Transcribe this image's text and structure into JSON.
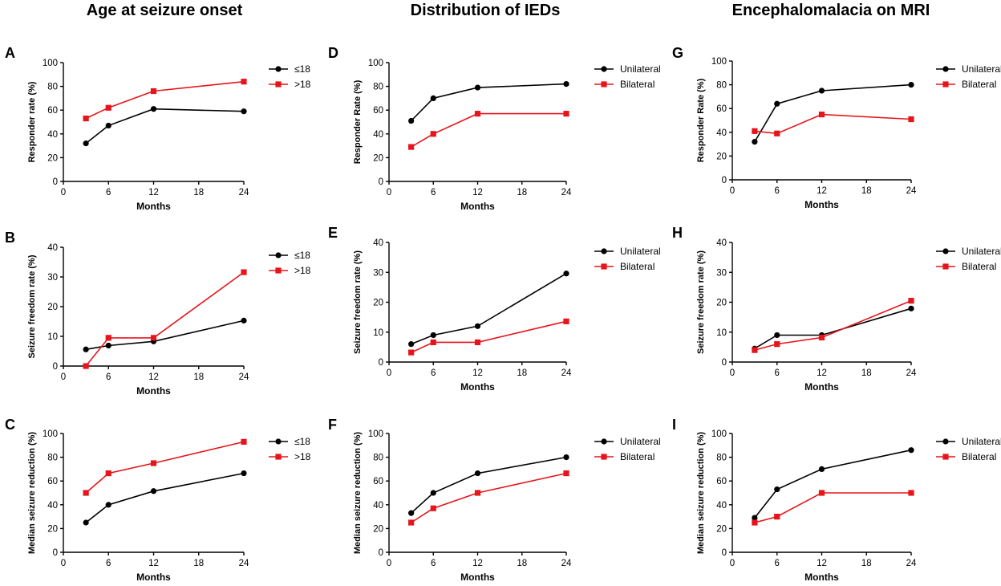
{
  "column_titles": [
    "Age at seizure onset",
    "Distribution of IEDs",
    "Encephalomalacia on MRI"
  ],
  "chart_data": [
    {
      "type": "line",
      "panel": "A",
      "xlabel": "Months",
      "ylabel": "Responder rate (%)",
      "xlim": [
        0,
        24
      ],
      "xticks": [
        0,
        6,
        12,
        18,
        24
      ],
      "ylim": [
        0,
        100
      ],
      "yticks": [
        0,
        20,
        40,
        60,
        80,
        100
      ],
      "x": [
        3,
        6,
        12,
        24
      ],
      "series": [
        {
          "name": "≤18",
          "color": "#000000",
          "marker": "circle",
          "values": [
            32,
            47,
            61,
            59
          ]
        },
        {
          "name": ">18",
          "color": "#e8141b",
          "marker": "square",
          "values": [
            53,
            62,
            76,
            84
          ]
        }
      ]
    },
    {
      "type": "line",
      "panel": "B",
      "xlabel": "Months",
      "ylabel": "Seizure freedom rate (%)",
      "xlim": [
        0,
        24
      ],
      "xticks": [
        0,
        6,
        12,
        18,
        24
      ],
      "ylim": [
        0,
        40
      ],
      "yticks": [
        0,
        10,
        20,
        30,
        40
      ],
      "x": [
        3,
        6,
        12,
        24
      ],
      "series": [
        {
          "name": "≤18",
          "color": "#000000",
          "marker": "circle",
          "values": [
            5.6,
            6.9,
            8.3,
            15.3
          ]
        },
        {
          "name": ">18",
          "color": "#e8141b",
          "marker": "square",
          "values": [
            0,
            9.5,
            9.5,
            31.6
          ]
        }
      ]
    },
    {
      "type": "line",
      "panel": "C",
      "xlabel": "Months",
      "ylabel": "Median seizure reduction (%)",
      "xlim": [
        0,
        24
      ],
      "xticks": [
        0,
        6,
        12,
        18,
        24
      ],
      "ylim": [
        0,
        100
      ],
      "yticks": [
        0,
        20,
        40,
        60,
        80,
        100
      ],
      "x": [
        3,
        6,
        12,
        24
      ],
      "series": [
        {
          "name": "≤18",
          "color": "#000000",
          "marker": "circle",
          "values": [
            25,
            40,
            51.5,
            66.5
          ]
        },
        {
          "name": ">18",
          "color": "#e8141b",
          "marker": "square",
          "values": [
            50,
            66.5,
            75,
            93
          ]
        }
      ]
    },
    {
      "type": "line",
      "panel": "D",
      "xlabel": "Months",
      "ylabel": "Responder Rate (%)",
      "xlim": [
        0,
        24
      ],
      "xticks": [
        0,
        6,
        12,
        18,
        24
      ],
      "ylim": [
        0,
        100
      ],
      "yticks": [
        0,
        20,
        40,
        60,
        80,
        100
      ],
      "x": [
        3,
        6,
        12,
        24
      ],
      "series": [
        {
          "name": "Unilateral",
          "color": "#000000",
          "marker": "circle",
          "values": [
            51,
            70,
            79,
            82
          ]
        },
        {
          "name": "Bilateral",
          "color": "#e8141b",
          "marker": "square",
          "values": [
            29,
            40,
            57,
            57
          ]
        }
      ]
    },
    {
      "type": "line",
      "panel": "E",
      "xlabel": "Months",
      "ylabel": "Seizure freedom rate (%)",
      "xlim": [
        0,
        24
      ],
      "xticks": [
        0,
        6,
        12,
        18,
        24
      ],
      "ylim": [
        0,
        40
      ],
      "yticks": [
        0,
        10,
        20,
        30,
        40
      ],
      "x": [
        3,
        6,
        12,
        24
      ],
      "series": [
        {
          "name": "Unilateral",
          "color": "#000000",
          "marker": "circle",
          "values": [
            6,
            9,
            12,
            29.6
          ]
        },
        {
          "name": "Bilateral",
          "color": "#e8141b",
          "marker": "square",
          "values": [
            3.2,
            6.6,
            6.6,
            13.6
          ]
        }
      ]
    },
    {
      "type": "line",
      "panel": "F",
      "xlabel": "Months",
      "ylabel": "Median seizure reduction (%)",
      "xlim": [
        0,
        24
      ],
      "xticks": [
        0,
        6,
        12,
        18,
        24
      ],
      "ylim": [
        0,
        100
      ],
      "yticks": [
        0,
        20,
        40,
        60,
        80,
        100
      ],
      "x": [
        3,
        6,
        12,
        24
      ],
      "series": [
        {
          "name": "Unilateral",
          "color": "#000000",
          "marker": "circle",
          "values": [
            33,
            50,
            66.5,
            80
          ]
        },
        {
          "name": "Bilateral",
          "color": "#e8141b",
          "marker": "square",
          "values": [
            25,
            37,
            50,
            66.5
          ]
        }
      ]
    },
    {
      "type": "line",
      "panel": "G",
      "xlabel": "Months",
      "ylabel": "Responder Rate (%)",
      "xlim": [
        0,
        24
      ],
      "xticks": [
        0,
        6,
        12,
        18,
        24
      ],
      "ylim": [
        0,
        100
      ],
      "yticks": [
        0,
        20,
        40,
        60,
        80,
        100
      ],
      "x": [
        3,
        6,
        12,
        24
      ],
      "series": [
        {
          "name": "Unilateral",
          "color": "#000000",
          "marker": "circle",
          "values": [
            32,
            64,
            75,
            80
          ]
        },
        {
          "name": "Bilateral",
          "color": "#e8141b",
          "marker": "square",
          "values": [
            41,
            39,
            55,
            51
          ]
        }
      ]
    },
    {
      "type": "line",
      "panel": "H",
      "xlabel": "Months",
      "ylabel": "Seizure freedom rate (%)",
      "xlim": [
        0,
        24
      ],
      "xticks": [
        0,
        6,
        12,
        18,
        24
      ],
      "ylim": [
        0,
        40
      ],
      "yticks": [
        0,
        10,
        20,
        30,
        40
      ],
      "x": [
        3,
        6,
        12,
        24
      ],
      "series": [
        {
          "name": "Unilateral",
          "color": "#000000",
          "marker": "circle",
          "values": [
            4.5,
            9,
            9,
            17.9
          ]
        },
        {
          "name": "Bilateral",
          "color": "#e8141b",
          "marker": "square",
          "values": [
            4,
            6,
            8.2,
            20.5
          ]
        }
      ]
    },
    {
      "type": "line",
      "panel": "I",
      "xlabel": "Months",
      "ylabel": "Median seizure reduction (%)",
      "xlim": [
        0,
        24
      ],
      "xticks": [
        0,
        6,
        12,
        18,
        24
      ],
      "ylim": [
        0,
        100
      ],
      "yticks": [
        0,
        20,
        40,
        60,
        80,
        100
      ],
      "x": [
        3,
        6,
        12,
        24
      ],
      "series": [
        {
          "name": "Unilateral",
          "color": "#000000",
          "marker": "circle",
          "values": [
            29,
            53,
            70,
            86
          ]
        },
        {
          "name": "Bilateral",
          "color": "#e8141b",
          "marker": "square",
          "values": [
            25,
            30,
            50,
            50
          ]
        }
      ]
    }
  ]
}
